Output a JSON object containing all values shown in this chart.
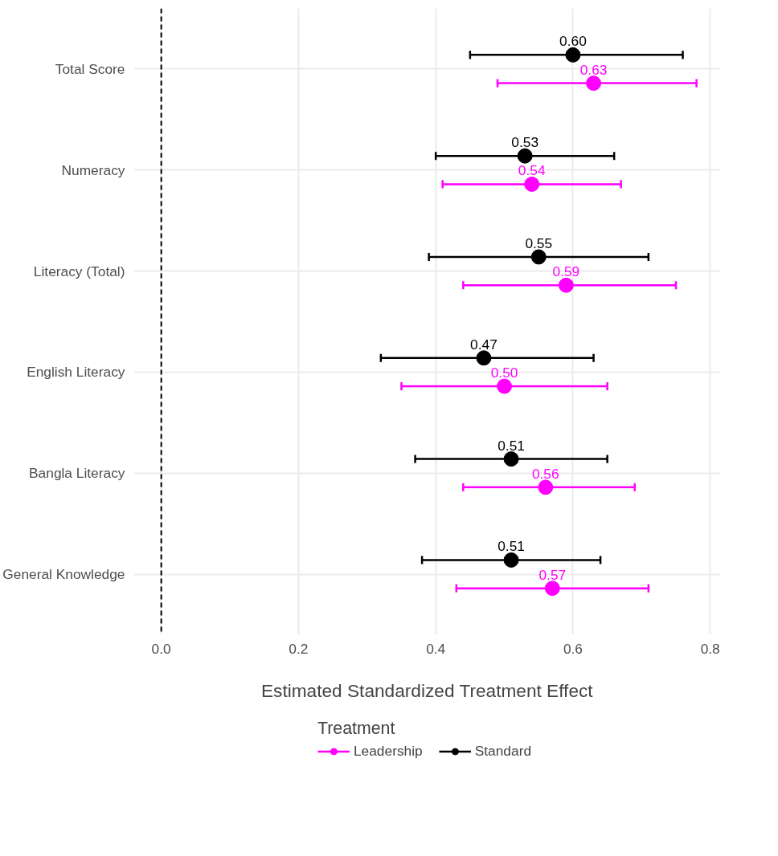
{
  "chart_data": {
    "type": "scatter",
    "orientation": "horizontal",
    "xlabel": "Estimated Standardized Treatment Effect",
    "legend_title": "Treatment",
    "categories": [
      "Total Score",
      "Numeracy",
      "Literacy (Total)",
      "English Literacy",
      "Bangla Literacy",
      "General Knowledge"
    ],
    "series": [
      {
        "name": "Leadership",
        "color": "#ff00ff",
        "values": [
          0.63,
          0.54,
          0.59,
          0.5,
          0.56,
          0.57
        ],
        "errors": [
          [
            0.49,
            0.78
          ],
          [
            0.41,
            0.67
          ],
          [
            0.44,
            0.75
          ],
          [
            0.35,
            0.65
          ],
          [
            0.44,
            0.69
          ],
          [
            0.43,
            0.71
          ]
        ],
        "value_labels": [
          "0.63",
          "0.54",
          "0.59",
          "0.50",
          "0.56",
          "0.57"
        ]
      },
      {
        "name": "Standard",
        "color": "#000000",
        "values": [
          0.6,
          0.53,
          0.55,
          0.47,
          0.51,
          0.51
        ],
        "errors": [
          [
            0.45,
            0.76
          ],
          [
            0.4,
            0.66
          ],
          [
            0.39,
            0.71
          ],
          [
            0.32,
            0.63
          ],
          [
            0.37,
            0.65
          ],
          [
            0.38,
            0.64
          ]
        ],
        "value_labels": [
          "0.60",
          "0.53",
          "0.55",
          "0.47",
          "0.51",
          "0.51"
        ]
      }
    ],
    "xlim": [
      -0.04,
      0.815
    ],
    "xticks": [
      {
        "value": 0,
        "label": "0.0"
      },
      0.2,
      0.4,
      0.6,
      0.8
    ],
    "ref_lines": [
      {
        "axis": "x",
        "value": 0,
        "color": "#000000",
        "line_style": "dashed"
      }
    ],
    "grid": true,
    "legend": "bottom",
    "marker": "circle"
  }
}
